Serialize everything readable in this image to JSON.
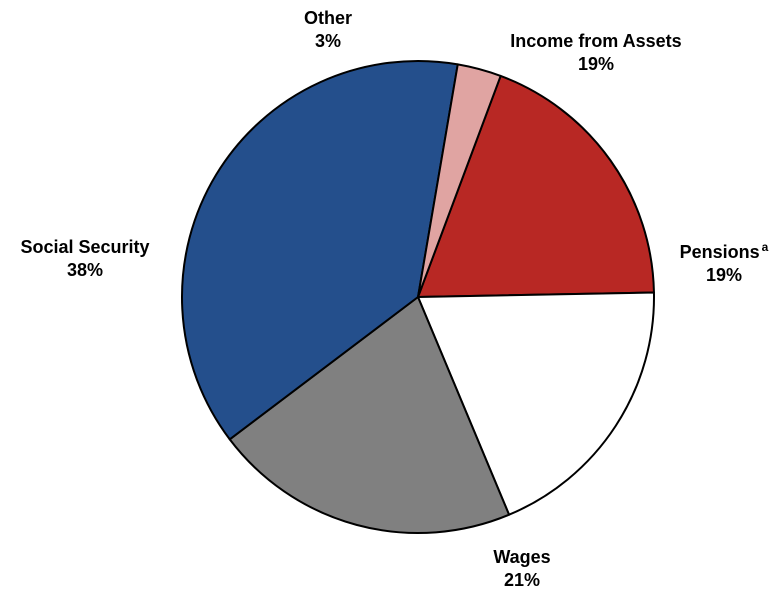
{
  "chart_data": {
    "type": "pie",
    "slices": [
      {
        "label": "Income from Assets",
        "percent_label": "19%",
        "value": 19,
        "color": "#b82824"
      },
      {
        "label": "Pensions",
        "footnote": "a",
        "percent_label": "19%",
        "value": 19,
        "color": "#ffffff"
      },
      {
        "label": "Wages",
        "percent_label": "21%",
        "value": 21,
        "color": "#808080"
      },
      {
        "label": "Social Security",
        "percent_label": "38%",
        "value": 38,
        "color": "#244f8c"
      },
      {
        "label": "Other",
        "percent_label": "3%",
        "value": 3,
        "color": "#e0a4a2"
      }
    ],
    "start": "top",
    "direction": "clockwise",
    "legend": "none"
  }
}
